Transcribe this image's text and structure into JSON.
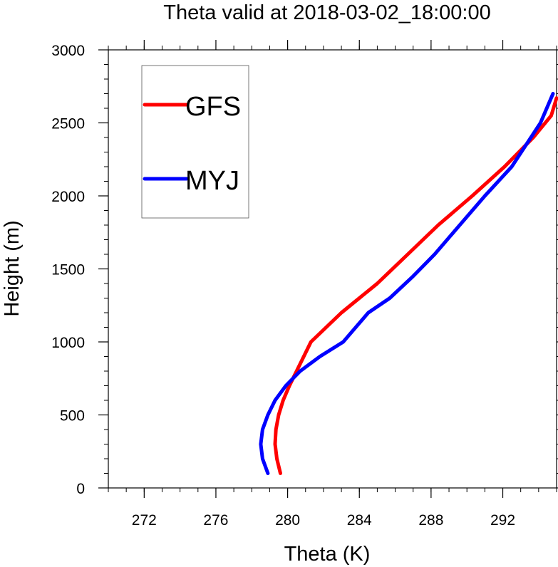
{
  "chart_data": {
    "type": "line",
    "title": "Theta valid at 2018-03-02_18:00:00",
    "xlabel": "Theta (K)",
    "ylabel": "Height (m)",
    "xlim": [
      270,
      295
    ],
    "ylim": [
      0,
      3000
    ],
    "xticks": [
      272,
      276,
      280,
      284,
      288,
      292
    ],
    "yticks": [
      0,
      500,
      1000,
      1500,
      2000,
      2500,
      3000
    ],
    "grid": false,
    "legend_position": "top-left",
    "series": [
      {
        "name": "GFS",
        "color": "#ff0000",
        "points": [
          [
            279.6,
            100
          ],
          [
            279.4,
            200
          ],
          [
            279.3,
            300
          ],
          [
            279.35,
            400
          ],
          [
            279.5,
            500
          ],
          [
            279.75,
            600
          ],
          [
            280.1,
            700
          ],
          [
            280.5,
            800
          ],
          [
            281.3,
            1000
          ],
          [
            283.0,
            1200
          ],
          [
            285.0,
            1400
          ],
          [
            286.7,
            1600
          ],
          [
            288.4,
            1800
          ],
          [
            290.3,
            2000
          ],
          [
            292.1,
            2200
          ],
          [
            293.7,
            2400
          ],
          [
            294.7,
            2550
          ],
          [
            295.0,
            2670
          ]
        ]
      },
      {
        "name": "MYJ",
        "color": "#0000ff",
        "points": [
          [
            278.9,
            100
          ],
          [
            278.6,
            200
          ],
          [
            278.5,
            300
          ],
          [
            278.6,
            400
          ],
          [
            278.9,
            500
          ],
          [
            279.3,
            600
          ],
          [
            279.9,
            700
          ],
          [
            280.7,
            800
          ],
          [
            281.8,
            900
          ],
          [
            283.1,
            1000
          ],
          [
            284.5,
            1200
          ],
          [
            285.7,
            1300
          ],
          [
            287.0,
            1450
          ],
          [
            288.2,
            1600
          ],
          [
            289.6,
            1800
          ],
          [
            291.0,
            2000
          ],
          [
            292.5,
            2200
          ],
          [
            294.1,
            2500
          ],
          [
            294.8,
            2700
          ]
        ]
      }
    ]
  }
}
